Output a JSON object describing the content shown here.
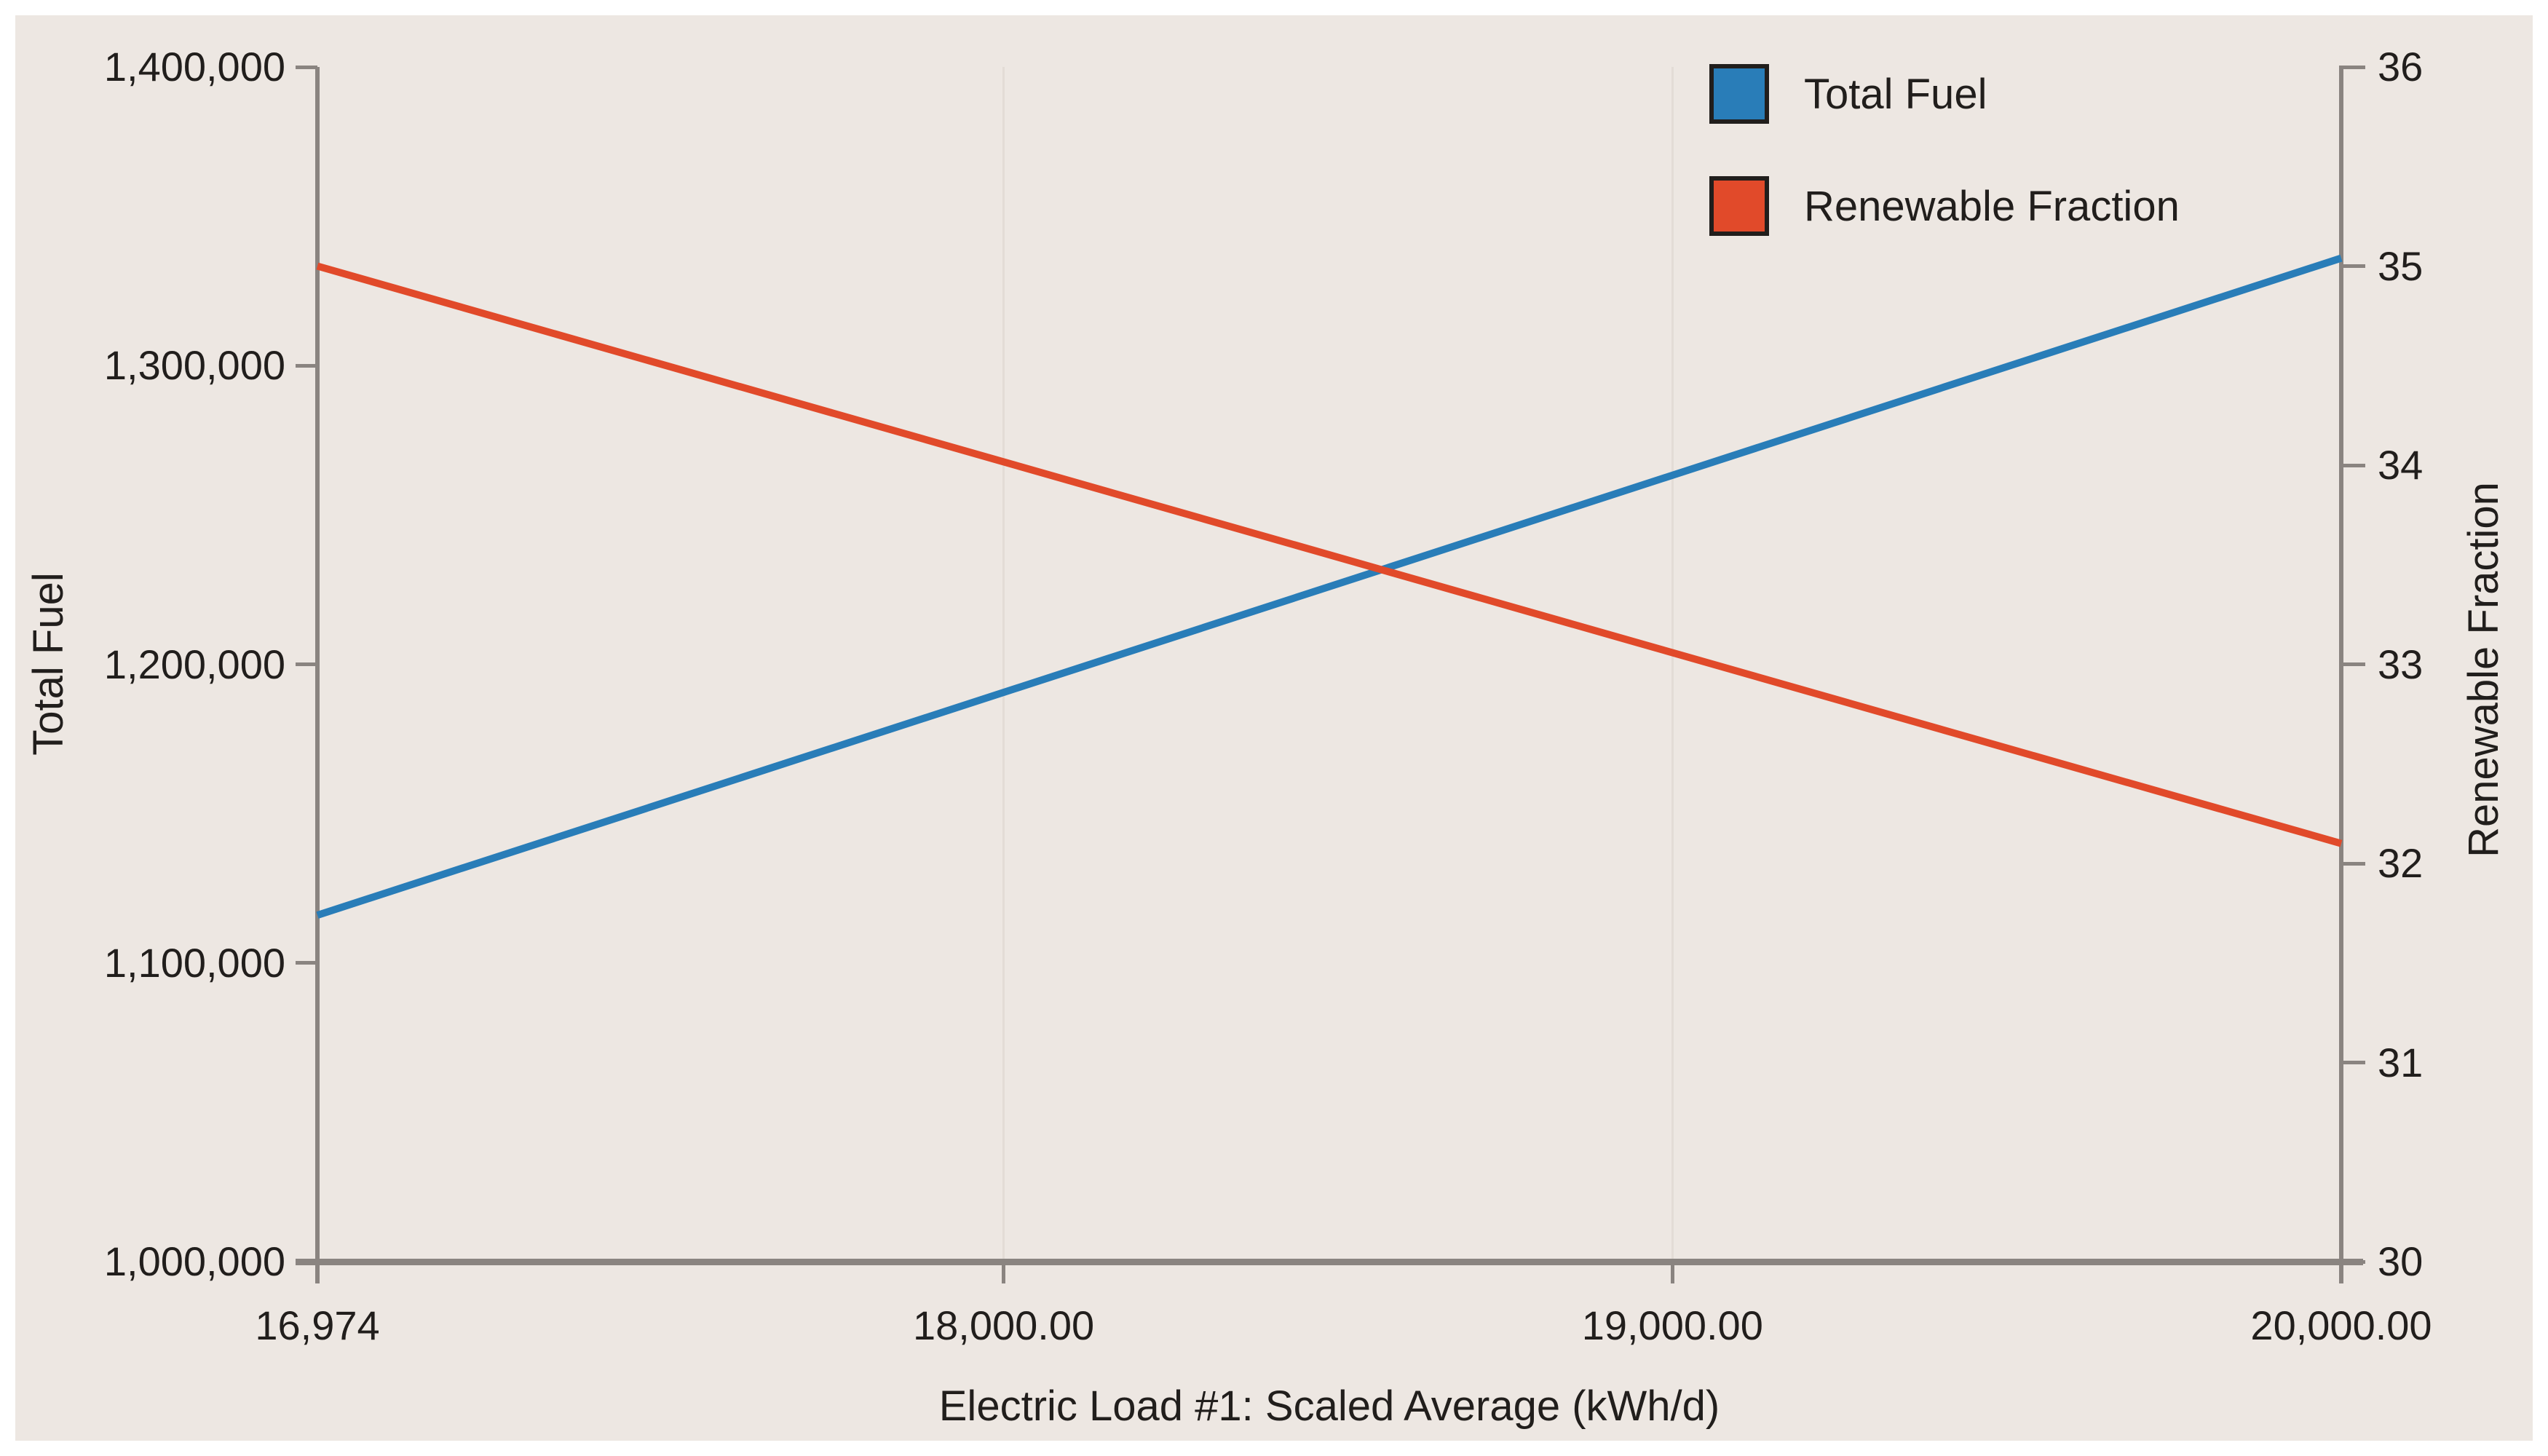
{
  "theme": {
    "background": "#FFFFFF",
    "panel": "#EDE7E2",
    "axis": "#8A8480",
    "grid": "#E3DCD6",
    "text": "#211E1C"
  },
  "legend": {
    "items": [
      {
        "label": "Total Fuel",
        "color": "#297DB8"
      },
      {
        "label": "Renewable Fraction",
        "color": "#E14A2A"
      }
    ]
  },
  "x_axis": {
    "title": "Electric Load #1: Scaled Average (kWh/d)",
    "min": 16974,
    "max": 20000,
    "ticks": [
      {
        "value": 16974,
        "label": "16,974"
      },
      {
        "value": 18000,
        "label": "18,000.00"
      },
      {
        "value": 19000,
        "label": "19,000.00"
      },
      {
        "value": 20000,
        "label": "20,000.00"
      }
    ],
    "gridlines": [
      18000,
      19000
    ]
  },
  "y_left": {
    "title": "Total Fuel",
    "min": 1000000,
    "max": 1400000,
    "ticks": [
      {
        "value": 1400000,
        "label": "1,400,000"
      },
      {
        "value": 1300000,
        "label": "1,300,000"
      },
      {
        "value": 1200000,
        "label": "1,200,000"
      },
      {
        "value": 1100000,
        "label": "1,100,000"
      },
      {
        "value": 1000000,
        "label": "1,000,000"
      }
    ]
  },
  "y_right": {
    "title": "Renewable Fraction",
    "min": 30,
    "max": 36,
    "ticks": [
      {
        "value": 36,
        "label": "36"
      },
      {
        "value": 35,
        "label": "35"
      },
      {
        "value": 34,
        "label": "34"
      },
      {
        "value": 33,
        "label": "33"
      },
      {
        "value": 32,
        "label": "32"
      },
      {
        "value": 31,
        "label": "31"
      },
      {
        "value": 30,
        "label": "30"
      }
    ]
  },
  "chart_data": {
    "type": "line",
    "x": [
      16974,
      20000
    ],
    "series": [
      {
        "name": "Total Fuel",
        "axis": "left",
        "color": "#297DB8",
        "values": [
          1116000,
          1336000
        ]
      },
      {
        "name": "Renewable Fraction",
        "axis": "right",
        "color": "#E14A2A",
        "values": [
          35.0,
          32.1
        ]
      }
    ],
    "xlabel": "Electric Load #1: Scaled Average (kWh/d)",
    "ylabel_left": "Total Fuel",
    "ylabel_right": "Renewable Fraction",
    "xlim": [
      16974,
      20000
    ],
    "ylim_left": [
      1000000,
      1400000
    ],
    "ylim_right": [
      30,
      36
    ],
    "grid": "vertical gridlines at 18000 and 19000",
    "legend_position": "top-right"
  }
}
